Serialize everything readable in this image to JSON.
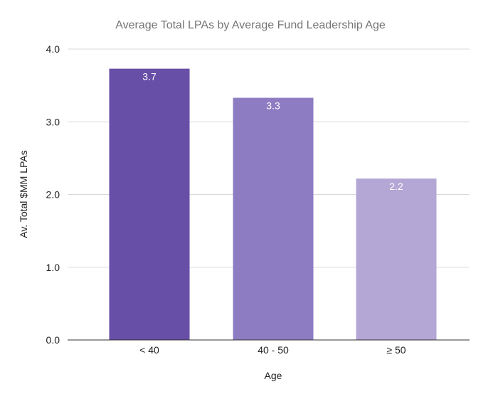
{
  "chart_data": {
    "type": "bar",
    "title": "Average Total LPAs by Average Fund Leadership Age",
    "xlabel": "Age",
    "ylabel": "Av. Total $MM LPAs",
    "categories": [
      "< 40",
      "40 - 50",
      "≥ 50"
    ],
    "values": [
      3.73,
      3.33,
      2.22
    ],
    "data_labels": [
      "3.7",
      "3.3",
      "2.2"
    ],
    "ylim": [
      0,
      4
    ],
    "yticks": [
      "0.0",
      "1.0",
      "2.0",
      "3.0",
      "4.0"
    ],
    "ytick_values": [
      0,
      1,
      2,
      3,
      4
    ],
    "grid": true,
    "legend": "none",
    "bar_colors": [
      "#674ea7",
      "#8e7cc3",
      "#b4a7d6"
    ]
  }
}
